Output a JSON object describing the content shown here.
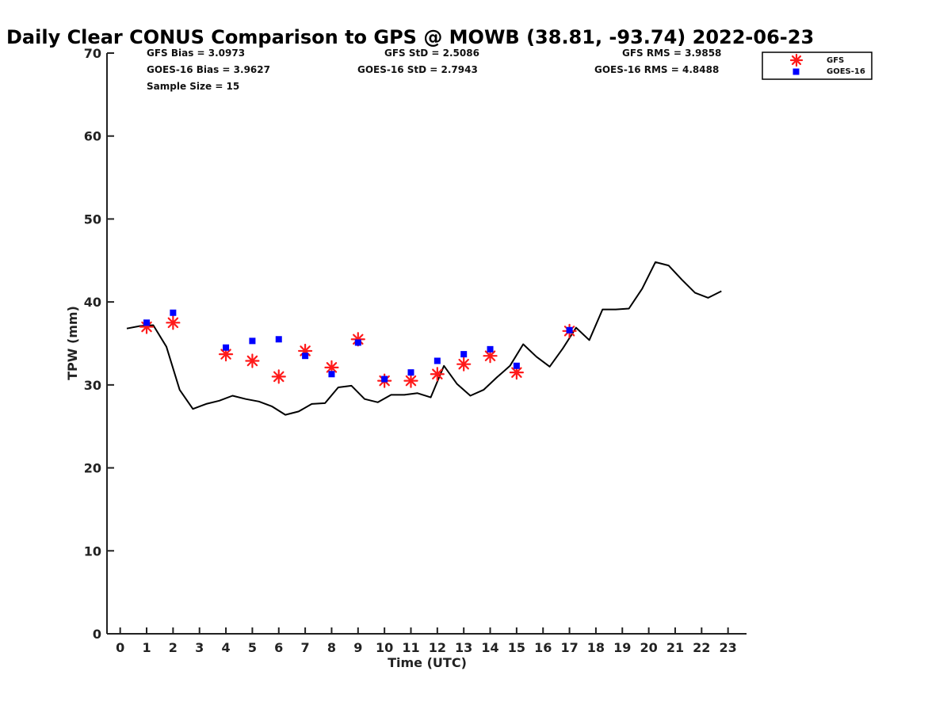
{
  "chart_data": {
    "type": "scatter",
    "title": "Daily Clear CONUS Comparison to GPS @ MOWB (38.81, -93.74) 2022-06-23",
    "xlabel": "Time (UTC)",
    "ylabel": "TPW (mm)",
    "xlim": [
      -0.5,
      23.7
    ],
    "ylim": [
      0,
      70
    ],
    "xticks": [
      0,
      1,
      2,
      3,
      4,
      5,
      6,
      7,
      8,
      9,
      10,
      11,
      12,
      13,
      14,
      15,
      16,
      17,
      18,
      19,
      20,
      21,
      22,
      23
    ],
    "yticks": [
      0,
      10,
      20,
      30,
      40,
      50,
      60,
      70
    ],
    "grid": false,
    "legend_position": "top-right",
    "stats": [
      "GFS Bias = 3.0973",
      "GFS StD = 2.5086",
      "GFS RMS = 3.9858",
      "GOES-16 Bias = 3.9627",
      "GOES-16 StD = 2.7943",
      "GOES-16 RMS = 4.8488",
      "Sample Size = 15"
    ],
    "series": [
      {
        "name": "GPS",
        "type": "line",
        "color": "#000000",
        "x": [
          0.25,
          0.75,
          1.25,
          1.75,
          2.25,
          2.75,
          3.25,
          3.75,
          4.25,
          4.75,
          5.25,
          5.75,
          6.25,
          6.75,
          7.25,
          7.75,
          8.25,
          8.75,
          9.25,
          9.75,
          10.25,
          10.75,
          11.25,
          11.75,
          12.25,
          12.75,
          13.25,
          13.75,
          14.25,
          14.75,
          15.25,
          15.75,
          16.25,
          16.75,
          17.25,
          17.75,
          18.25,
          18.75,
          19.25,
          19.75,
          20.25,
          20.75,
          21.25,
          21.75,
          22.25,
          22.75
        ],
        "y": [
          36.8,
          37.1,
          37.2,
          34.6,
          29.4,
          27.1,
          27.7,
          28.1,
          28.7,
          28.3,
          28.0,
          27.4,
          26.4,
          26.8,
          27.7,
          27.8,
          29.7,
          29.9,
          28.3,
          27.9,
          28.8,
          28.8,
          29.0,
          28.5,
          32.3,
          30.1,
          28.7,
          29.4,
          30.9,
          32.3,
          34.9,
          33.4,
          32.2,
          34.4,
          36.9,
          35.4,
          39.1,
          39.1,
          39.2,
          41.6,
          44.8,
          44.4,
          42.7,
          41.1,
          40.5,
          41.3
        ]
      },
      {
        "name": "GFS",
        "type": "scatter",
        "marker": "asterisk",
        "color": "#ff1a1a",
        "x": [
          1,
          2,
          4,
          5,
          6,
          7,
          8,
          9,
          10,
          11,
          12,
          13,
          14,
          15,
          17
        ],
        "y": [
          37.0,
          37.5,
          33.7,
          32.9,
          31.0,
          34.1,
          32.1,
          35.5,
          30.5,
          30.5,
          31.3,
          32.5,
          33.5,
          31.5,
          36.5
        ]
      },
      {
        "name": "GOES-16",
        "type": "scatter",
        "marker": "square",
        "color": "#0000ff",
        "x": [
          1,
          2,
          4,
          5,
          6,
          7,
          8,
          9,
          10,
          11,
          12,
          13,
          14,
          15,
          17
        ],
        "y": [
          37.5,
          38.7,
          34.5,
          35.3,
          35.5,
          33.5,
          31.3,
          35.1,
          30.7,
          31.5,
          32.9,
          33.7,
          34.3,
          32.3,
          36.6
        ]
      }
    ]
  }
}
